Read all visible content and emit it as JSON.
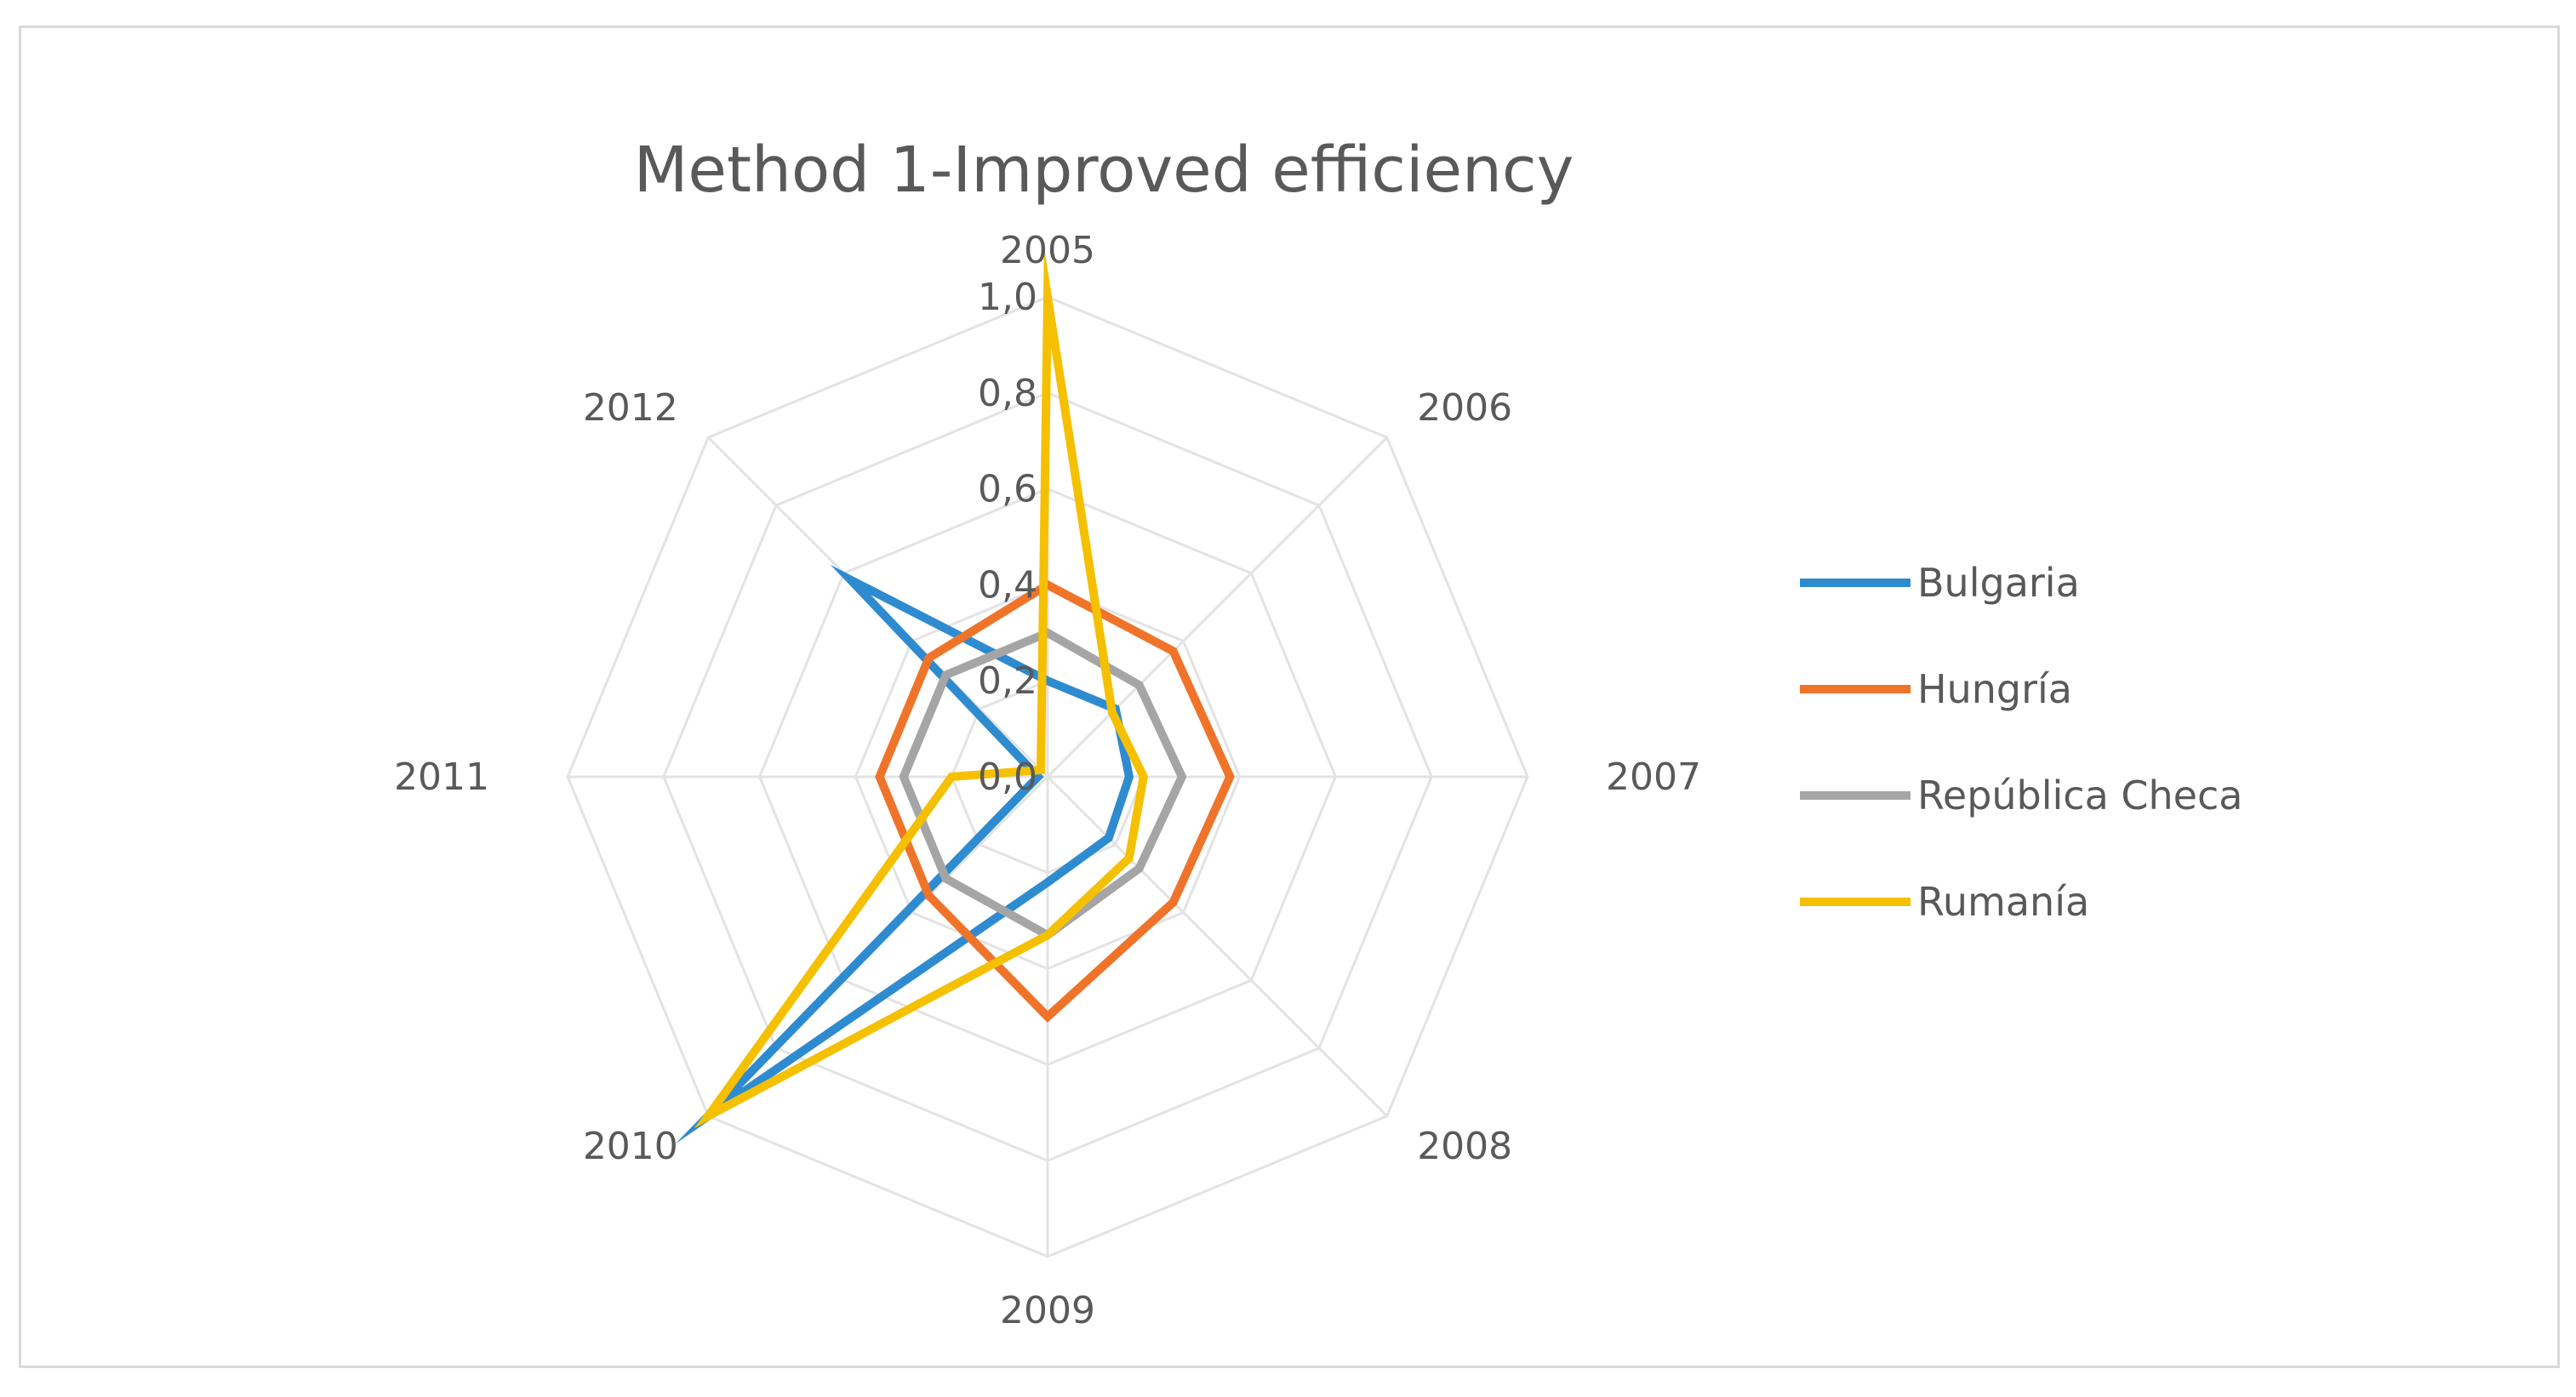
{
  "chart_data": {
    "type": "radar",
    "title": "Method 1-Improved efficiency",
    "categories": [
      "2005",
      "2006",
      "2007",
      "2008",
      "2009",
      "2010",
      "2011",
      "2012"
    ],
    "rlim": [
      0,
      1
    ],
    "ticks": [
      "0,0",
      "0,2",
      "0,4",
      "0,6",
      "0,8",
      "1,0"
    ],
    "tick_values": [
      0,
      0.2,
      0.4,
      0.6,
      0.8,
      1.0
    ],
    "grid": true,
    "legend_position": "right",
    "series": [
      {
        "name": "Bulgaria",
        "color": "#2E8BD0",
        "values": [
          0.2,
          0.2,
          0.17,
          0.18,
          0.22,
          1.0,
          0.02,
          0.58
        ]
      },
      {
        "name": "Hungría",
        "color": "#F0732A",
        "values": [
          0.4,
          0.37,
          0.38,
          0.37,
          0.5,
          0.35,
          0.35,
          0.35
        ]
      },
      {
        "name": "República Checa",
        "color": "#A5A5A5",
        "values": [
          0.3,
          0.27,
          0.28,
          0.27,
          0.33,
          0.3,
          0.3,
          0.3
        ]
      },
      {
        "name": "Rumanía",
        "color": "#F5C000",
        "values": [
          1.0,
          0.19,
          0.2,
          0.24,
          0.33,
          1.0,
          0.2,
          0.02
        ]
      }
    ]
  }
}
